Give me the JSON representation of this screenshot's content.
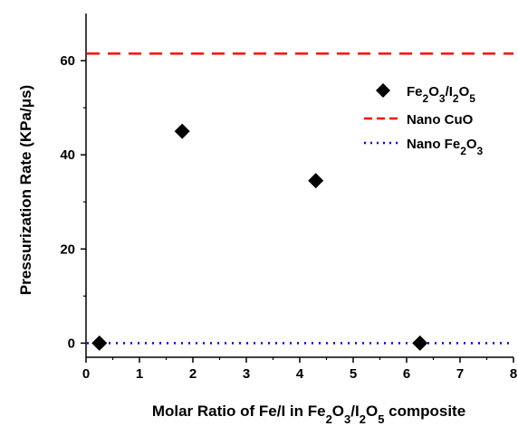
{
  "chart_data": {
    "type": "scatter",
    "xlabel": {
      "prefix": "Molar Ratio of Fe/I in Fe",
      "a": "2",
      "b": "O",
      "c": "3",
      "d": "/I",
      "e": "2",
      "f": "O",
      "g": "5",
      "suffix": " composite"
    },
    "ylabel": "Pressurization Rate (KPa/μs)",
    "xlim": [
      0,
      8
    ],
    "ylim": [
      -3,
      70
    ],
    "x_ticks": [
      "0",
      "1",
      "2",
      "3",
      "4",
      "5",
      "6",
      "7",
      "8"
    ],
    "y_ticks": [
      "0",
      "20",
      "40",
      "60"
    ],
    "grid": false,
    "legend_position": "top-right",
    "series": [
      {
        "name": "Fe2O3/I2O5",
        "kind": "points",
        "marker": "diamond",
        "color": "#000000",
        "points": [
          {
            "x": 0.25,
            "y": 0
          },
          {
            "x": 1.8,
            "y": 45
          },
          {
            "x": 4.3,
            "y": 34.5
          },
          {
            "x": 6.25,
            "y": 0
          }
        ]
      },
      {
        "name": "Nano CuO",
        "kind": "hline",
        "style": "dashed",
        "color": "#ff0000",
        "y": 61.5
      },
      {
        "name": "Nano Fe2O3",
        "kind": "hline",
        "style": "dotted",
        "color": "#0000ff",
        "y": 0
      }
    ]
  }
}
